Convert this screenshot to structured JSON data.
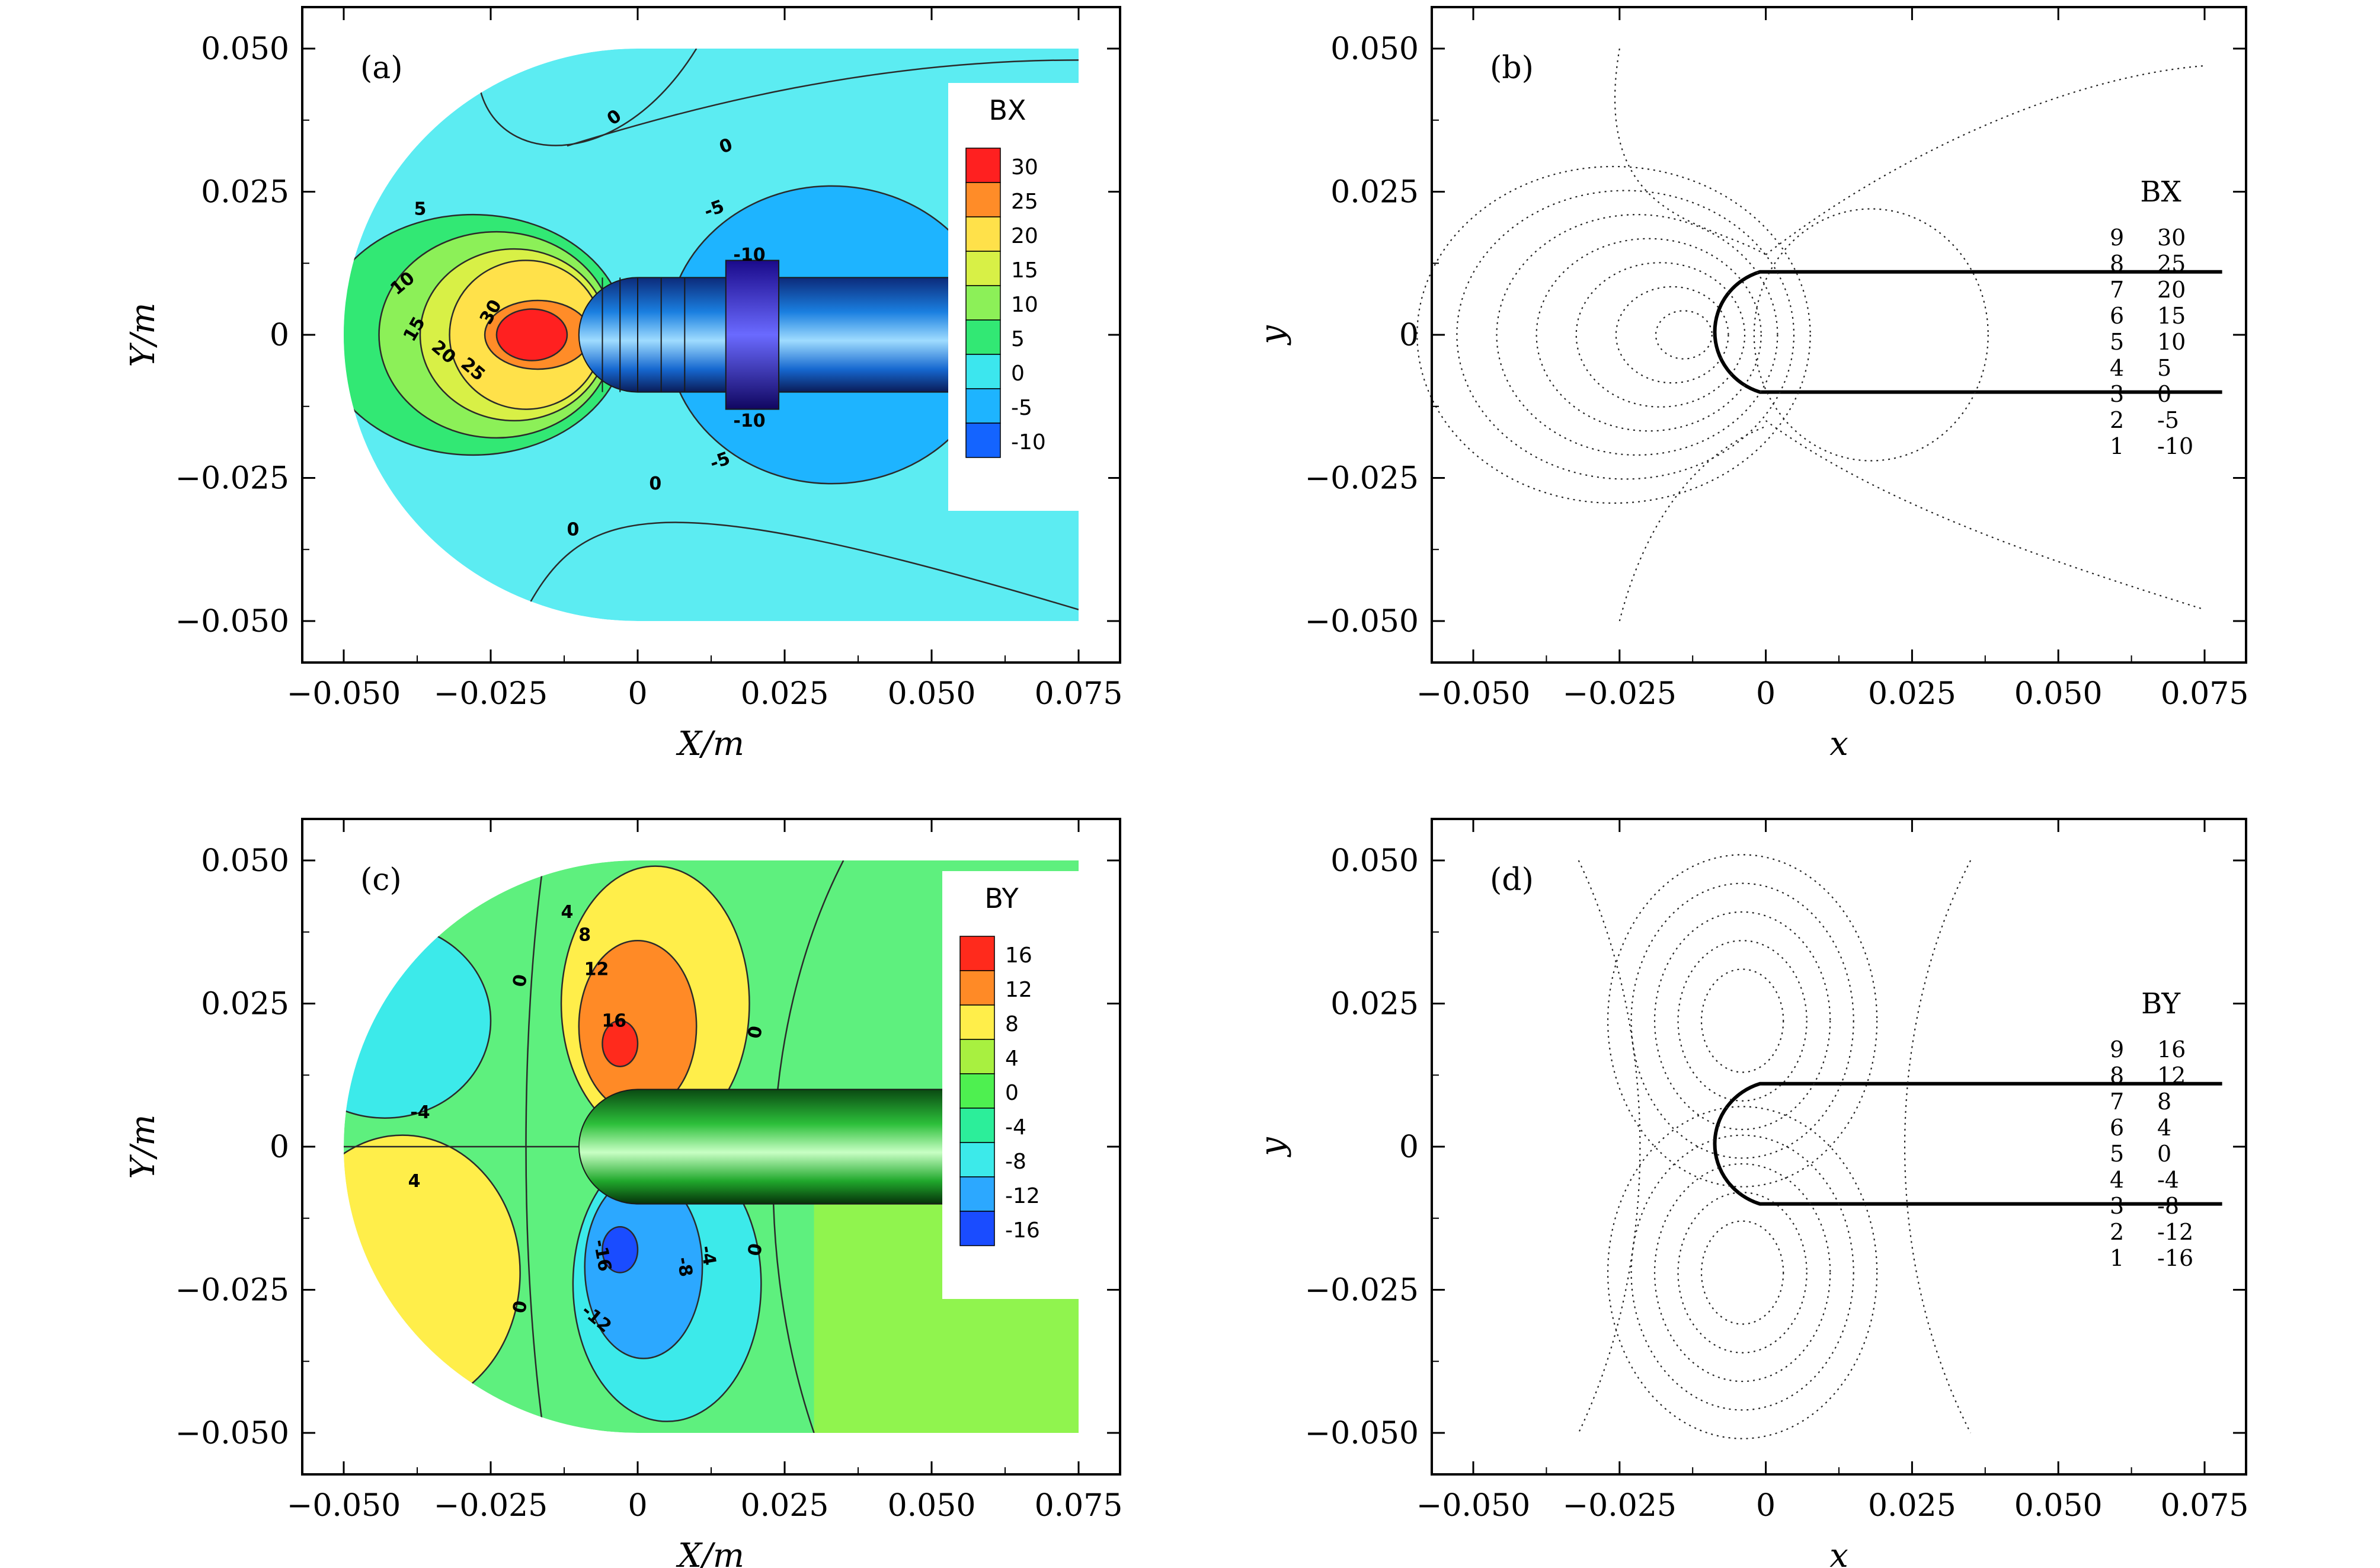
{
  "chart_data": [
    {
      "id": "a",
      "type": "heatmap",
      "subtype": "filled-contour",
      "panel_label": "(a)",
      "xlabel": "X/m",
      "ylabel": "Y/m",
      "xlim": [
        -0.05,
        0.075
      ],
      "ylim": [
        -0.05,
        0.05
      ],
      "x_ticks": [
        "−0.050",
        "−0.025",
        "0",
        "0.025",
        "0.050",
        "0.075"
      ],
      "y_ticks": [
        "0.050",
        "0.025",
        "0",
        "−0.025",
        "−0.050"
      ],
      "colorbar_title": "BX",
      "colorbar_levels": [
        {
          "value": "30",
          "color": "#ff2020"
        },
        {
          "value": "25",
          "color": "#ff8c28"
        },
        {
          "value": "20",
          "color": "#ffe14a"
        },
        {
          "value": "15",
          "color": "#d8f046"
        },
        {
          "value": "10",
          "color": "#8cf058"
        },
        {
          "value": "5",
          "color": "#32e874"
        },
        {
          "value": "0",
          "color": "#3ce6ee"
        },
        {
          "value": "-5",
          "color": "#1eb4ff"
        },
        {
          "value": "-10",
          "color": "#1464ff"
        }
      ],
      "background_color": "#5cecf2",
      "contour_labels": [
        "0",
        "0",
        "5",
        "-5",
        "10",
        "-10",
        "15",
        "30",
        "20",
        "25",
        "-10",
        "-5",
        "0",
        "0"
      ]
    },
    {
      "id": "b",
      "type": "scatter",
      "subtype": "dotted-contour",
      "panel_label": "(b)",
      "xlabel": "x",
      "ylabel": "y",
      "xlim": [
        -0.05,
        0.075
      ],
      "ylim": [
        -0.05,
        0.05
      ],
      "x_ticks": [
        "−0.050",
        "−0.025",
        "0",
        "0.025",
        "0.050",
        "0.075"
      ],
      "y_ticks": [
        "0.050",
        "0.025",
        "0",
        "−0.025",
        "−0.050"
      ],
      "legend_title": "BX",
      "legend": [
        {
          "level": "9",
          "value": "30"
        },
        {
          "level": "8",
          "value": "25"
        },
        {
          "level": "7",
          "value": "20"
        },
        {
          "level": "6",
          "value": "15"
        },
        {
          "level": "5",
          "value": "10"
        },
        {
          "level": "4",
          "value": "5"
        },
        {
          "level": "3",
          "value": "0"
        },
        {
          "level": "2",
          "value": "-5"
        },
        {
          "level": "1",
          "value": "-10"
        }
      ]
    },
    {
      "id": "c",
      "type": "heatmap",
      "subtype": "filled-contour",
      "panel_label": "(c)",
      "xlabel": "X/m",
      "ylabel": "Y/m",
      "xlim": [
        -0.05,
        0.075
      ],
      "ylim": [
        -0.05,
        0.05
      ],
      "x_ticks": [
        "−0.050",
        "−0.025",
        "0",
        "0.025",
        "0.050",
        "0.075"
      ],
      "y_ticks": [
        "0.050",
        "0.025",
        "0",
        "−0.025",
        "−0.050"
      ],
      "colorbar_title": "BY",
      "colorbar_levels": [
        {
          "value": "16",
          "color": "#ff2a1c"
        },
        {
          "value": "12",
          "color": "#ff8a26"
        },
        {
          "value": "8",
          "color": "#ffee4a"
        },
        {
          "value": "4",
          "color": "#a8f040"
        },
        {
          "value": "0",
          "color": "#4ef050"
        },
        {
          "value": "-4",
          "color": "#2cee9a"
        },
        {
          "value": "-8",
          "color": "#3ceaea"
        },
        {
          "value": "-12",
          "color": "#2ca8ff"
        },
        {
          "value": "-16",
          "color": "#1a4cff"
        }
      ],
      "background_color": "#5ef07e",
      "contour_labels": [
        "4",
        "8",
        "12",
        "16",
        "0",
        "0",
        "-4",
        "4",
        "0",
        "-16",
        "-8",
        "-4",
        "-12",
        "0",
        "0"
      ]
    },
    {
      "id": "d",
      "type": "scatter",
      "subtype": "dotted-contour",
      "panel_label": "(d)",
      "xlabel": "x",
      "ylabel": "y",
      "xlim": [
        -0.05,
        0.075
      ],
      "ylim": [
        -0.05,
        0.05
      ],
      "x_ticks": [
        "−0.050",
        "−0.025",
        "0",
        "0.025",
        "0.050",
        "0.075"
      ],
      "y_ticks": [
        "0.050",
        "0.025",
        "0",
        "−0.025",
        "−0.050"
      ],
      "legend_title": "BY",
      "legend": [
        {
          "level": "9",
          "value": "16"
        },
        {
          "level": "8",
          "value": "12"
        },
        {
          "level": "7",
          "value": "8"
        },
        {
          "level": "6",
          "value": "4"
        },
        {
          "level": "5",
          "value": "0"
        },
        {
          "level": "4",
          "value": "-4"
        },
        {
          "level": "3",
          "value": "-8"
        },
        {
          "level": "2",
          "value": "-12"
        },
        {
          "level": "1",
          "value": "-16"
        }
      ]
    }
  ]
}
